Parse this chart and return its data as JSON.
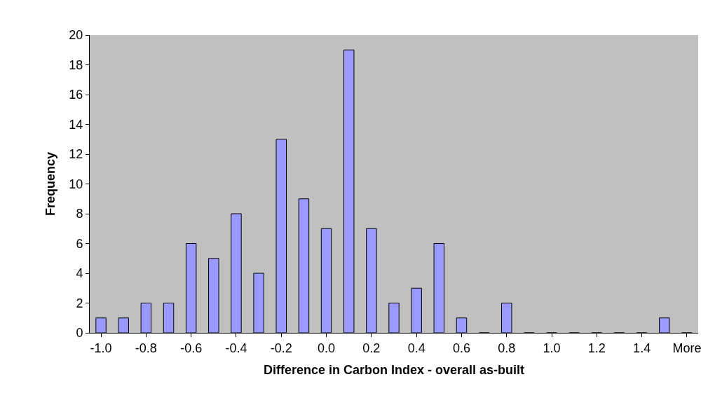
{
  "chart_data": {
    "type": "bar",
    "xlabel": "Difference in Carbon Index - overall as-built",
    "ylabel": "Frequency",
    "categories": [
      "-1.0",
      null,
      "-0.8",
      null,
      "-0.6",
      null,
      "-0.4",
      null,
      "-0.2",
      null,
      "0.0",
      null,
      "0.2",
      null,
      "0.4",
      null,
      "0.6",
      null,
      "0.8",
      null,
      "1.0",
      null,
      "1.2",
      null,
      "1.4",
      null,
      "More"
    ],
    "values": [
      1,
      1,
      2,
      2,
      6,
      5,
      8,
      4,
      13,
      9,
      7,
      19,
      7,
      2,
      3,
      6,
      1,
      0,
      2,
      0,
      0,
      0,
      0,
      0,
      0,
      1,
      0
    ],
    "color": "#9999ff",
    "ylim": [
      0,
      20
    ],
    "yticks": [
      0,
      2,
      4,
      6,
      8,
      10,
      12,
      14,
      16,
      18,
      20
    ],
    "grid": false
  }
}
